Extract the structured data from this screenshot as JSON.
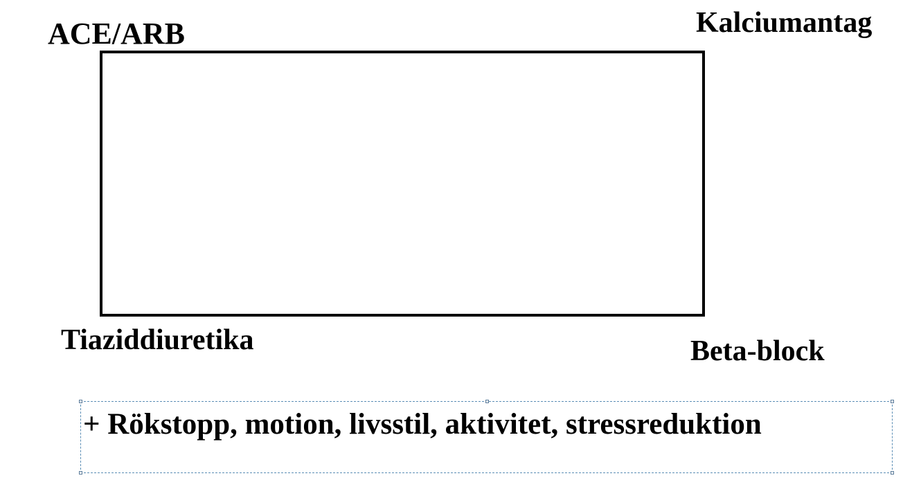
{
  "labels": {
    "top_left": "ACE/ARB",
    "top_right": "Kalciumantag",
    "bottom_left": "Tiaziddiuretika",
    "bottom_right": "Beta-block"
  },
  "textbox": {
    "text": "+ Rökstopp, motion, livsstil, aktivitet, stressreduktion"
  },
  "colors": {
    "text": "#000000",
    "box_border": "#000000",
    "selection_border": "#5a8db5"
  }
}
